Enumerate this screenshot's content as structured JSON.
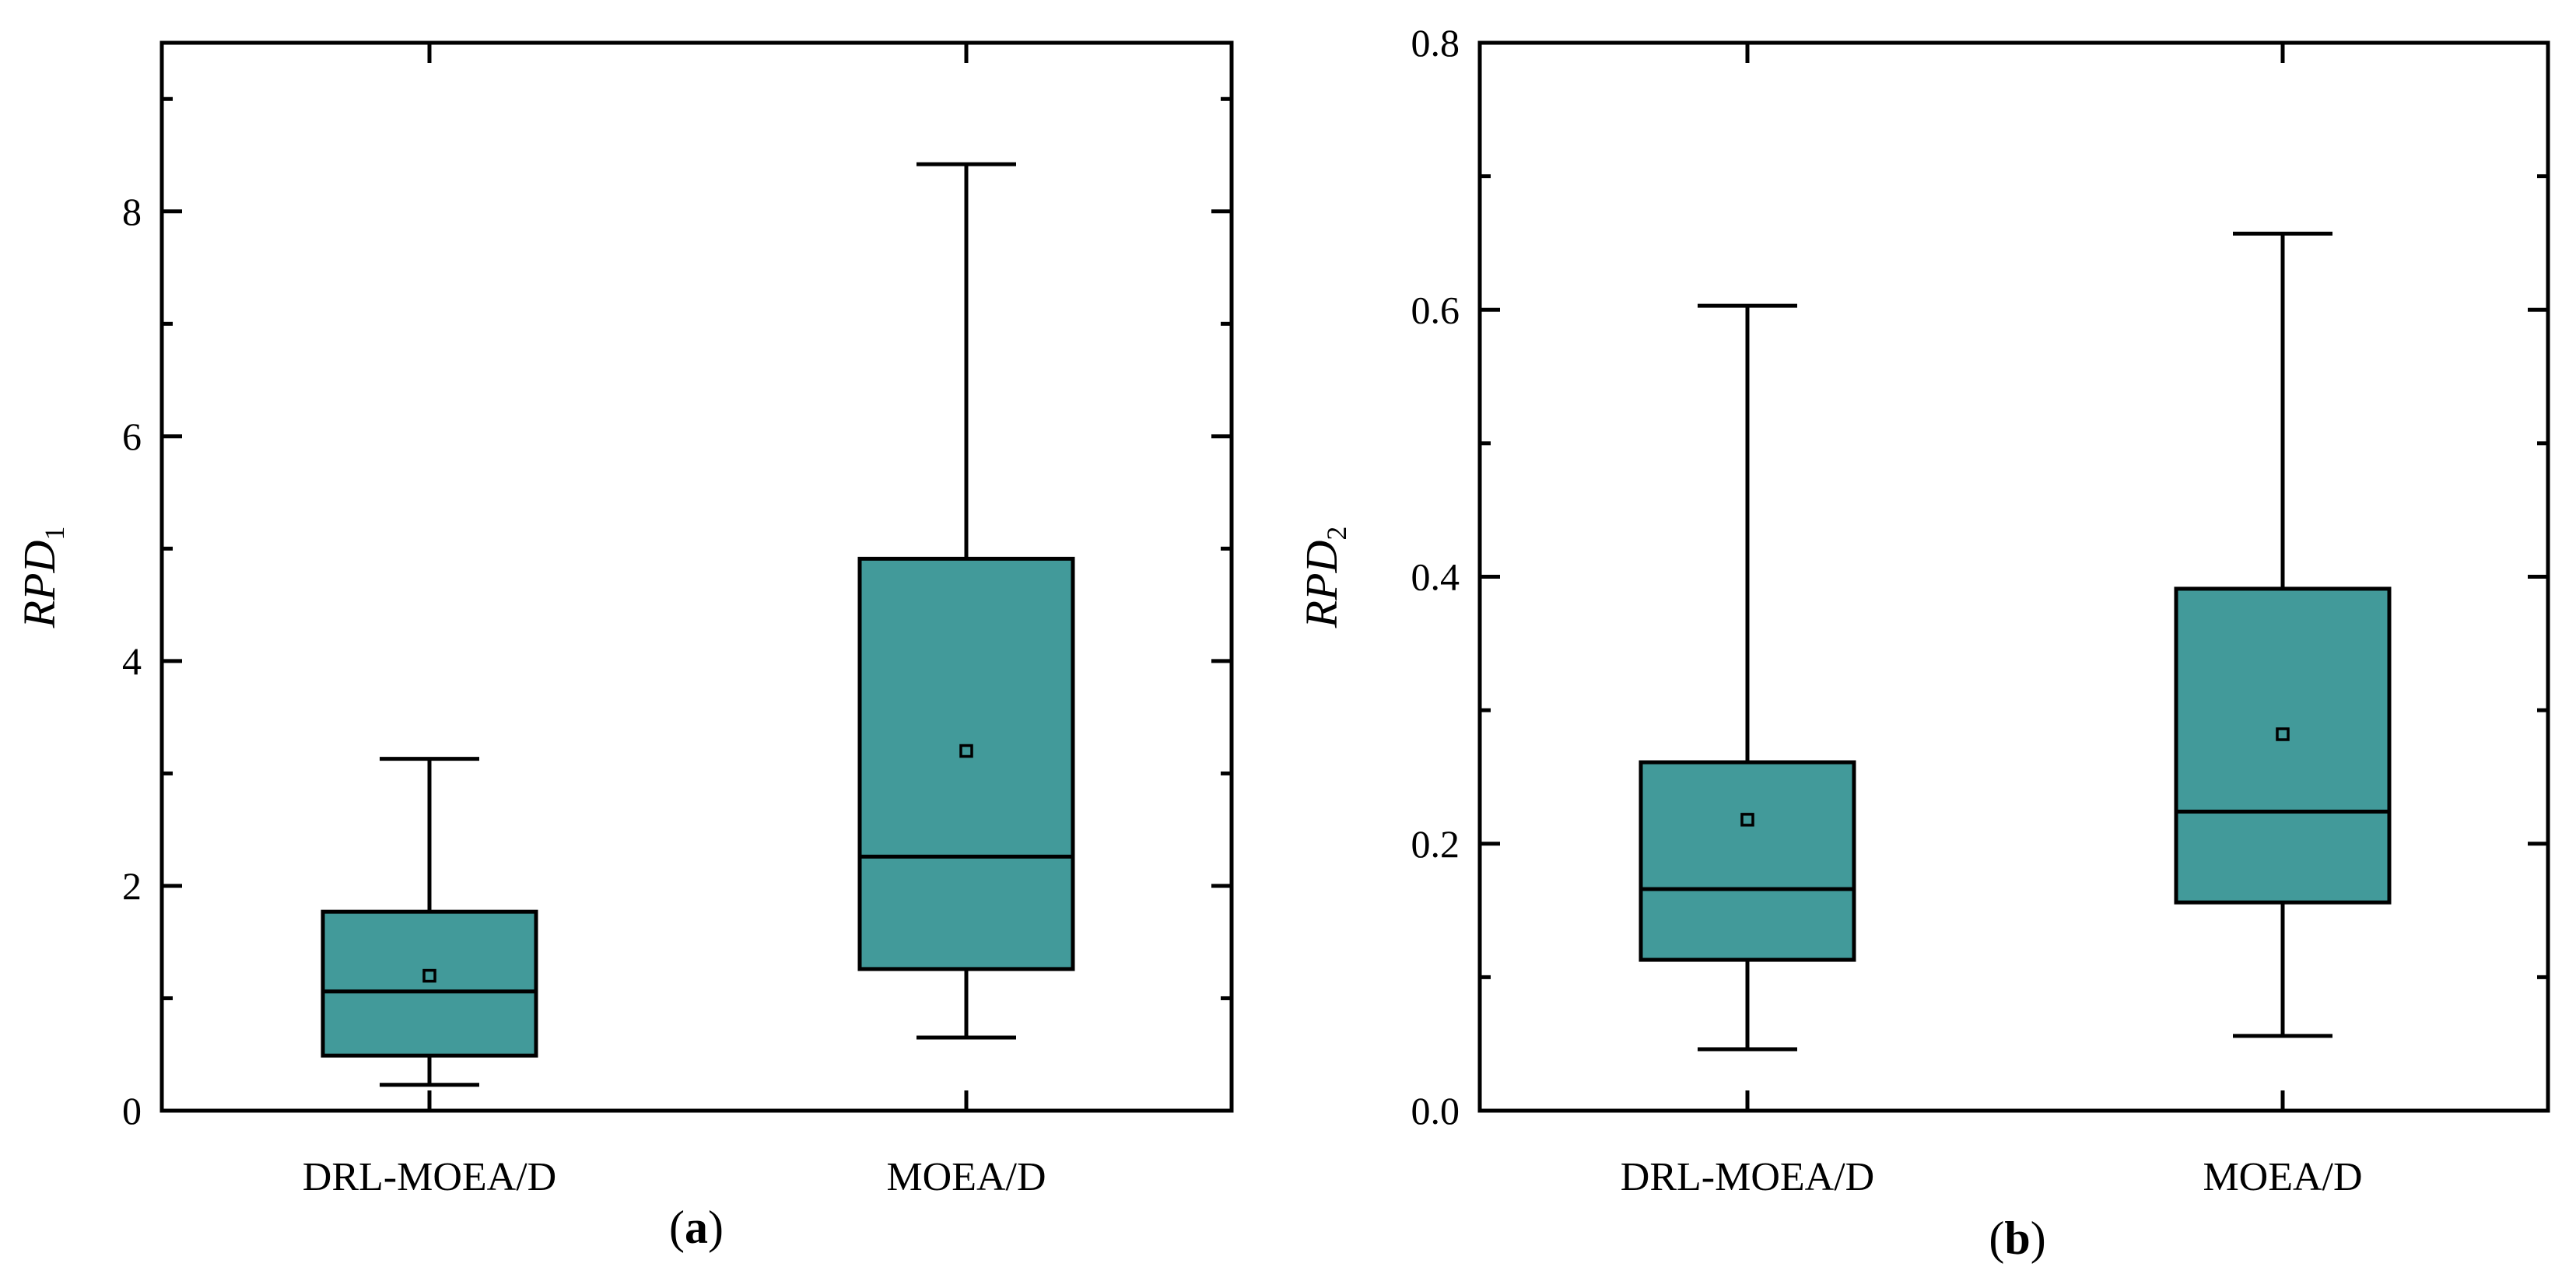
{
  "chart_data": [
    {
      "type": "box",
      "panel_label": "a",
      "ylabel_main": "RPD",
      "ylabel_sub": "1",
      "ylim": [
        0,
        9.5
      ],
      "yticks_major": [
        0,
        2,
        4,
        6,
        8
      ],
      "ytick_labels": [
        "0",
        "2",
        "4",
        "6",
        "8"
      ],
      "yticks_minor": [
        1,
        3,
        5,
        7,
        9
      ],
      "categories": [
        "DRL-MOEA/D",
        "MOEA/D"
      ],
      "boxes": [
        {
          "name": "DRL-MOEA/D",
          "whisker_low": 0.23,
          "q1": 0.49,
          "median": 1.06,
          "q3": 1.77,
          "whisker_high": 3.13,
          "mean": 1.2
        },
        {
          "name": "MOEA/D",
          "whisker_low": 0.65,
          "q1": 1.26,
          "median": 2.26,
          "q3": 4.91,
          "whisker_high": 8.42,
          "mean": 3.2
        }
      ],
      "box_color": "#429a9a"
    },
    {
      "type": "box",
      "panel_label": "b",
      "ylabel_main": "RPD",
      "ylabel_sub": "2",
      "ylim": [
        0,
        0.8
      ],
      "yticks_major": [
        0,
        0.2,
        0.4,
        0.6,
        0.8
      ],
      "ytick_labels": [
        "0.0",
        "0.2",
        "0.4",
        "0.6",
        "0.8"
      ],
      "yticks_minor": [
        0.1,
        0.3,
        0.5,
        0.7
      ],
      "categories": [
        "DRL-MOEA/D",
        "MOEA/D"
      ],
      "boxes": [
        {
          "name": "DRL-MOEA/D",
          "whisker_low": 0.046,
          "q1": 0.113,
          "median": 0.166,
          "q3": 0.261,
          "whisker_high": 0.603,
          "mean": 0.218
        },
        {
          "name": "MOEA/D",
          "whisker_low": 0.056,
          "q1": 0.156,
          "median": 0.224,
          "q3": 0.391,
          "whisker_high": 0.657,
          "mean": 0.282
        }
      ],
      "box_color": "#429a9a"
    }
  ]
}
